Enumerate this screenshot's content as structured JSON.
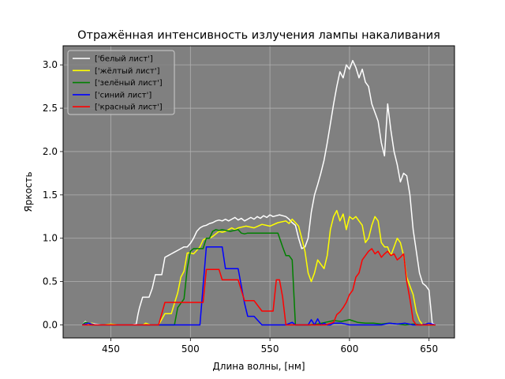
{
  "chart_data": {
    "type": "line",
    "title": "Отражённая интенсивность излучения лампы накаливания",
    "xlabel": "Длина волны, [нм]",
    "ylabel": "Яркость",
    "xlim": [
      420,
      666
    ],
    "ylim": [
      -0.15,
      3.22
    ],
    "xticks": [
      450,
      500,
      550,
      600,
      650
    ],
    "yticks": [
      0.0,
      0.5,
      1.0,
      1.5,
      2.0,
      2.5,
      3.0
    ],
    "xtick_labels": [
      "450",
      "500",
      "550",
      "600",
      "650"
    ],
    "ytick_labels": [
      "0.0",
      "0.5",
      "1.0",
      "1.5",
      "2.0",
      "2.5",
      "3.0"
    ],
    "grid": true,
    "legend_position": "top-left",
    "plot_background": "#808080",
    "series": [
      {
        "name": "['белый лист']",
        "color": "#ffffff",
        "x": [
          432,
          434,
          436,
          438,
          440,
          445,
          450,
          455,
          460,
          463,
          466,
          467,
          468,
          470,
          472,
          474,
          476,
          478,
          480,
          482,
          484,
          486,
          488,
          490,
          492,
          494,
          496,
          498,
          500,
          502,
          504,
          506,
          508,
          510,
          512,
          514,
          516,
          518,
          520,
          522,
          524,
          526,
          528,
          530,
          532,
          534,
          536,
          538,
          540,
          542,
          544,
          546,
          548,
          550,
          552,
          554,
          556,
          558,
          560,
          562,
          564,
          566,
          568,
          570,
          572,
          574,
          576,
          578,
          580,
          582,
          584,
          586,
          588,
          590,
          592,
          594,
          596,
          598,
          600,
          602,
          604,
          606,
          608,
          610,
          612,
          614,
          616,
          618,
          620,
          622,
          624,
          626,
          628,
          630,
          632,
          634,
          636,
          638,
          640,
          642,
          644,
          646,
          648,
          650,
          652,
          654
        ],
        "y": [
          0.0,
          0.04,
          0.0,
          0.02,
          0.01,
          0.0,
          0.0,
          0.0,
          0.0,
          0.0,
          0.01,
          0.12,
          0.2,
          0.32,
          0.32,
          0.32,
          0.42,
          0.58,
          0.58,
          0.58,
          0.78,
          0.8,
          0.82,
          0.84,
          0.86,
          0.88,
          0.9,
          0.9,
          0.94,
          1.0,
          1.08,
          1.12,
          1.14,
          1.15,
          1.17,
          1.18,
          1.2,
          1.21,
          1.2,
          1.22,
          1.2,
          1.22,
          1.24,
          1.21,
          1.23,
          1.2,
          1.22,
          1.24,
          1.22,
          1.25,
          1.23,
          1.26,
          1.24,
          1.27,
          1.25,
          1.26,
          1.27,
          1.26,
          1.25,
          1.22,
          1.18,
          1.15,
          1.0,
          0.88,
          0.9,
          1.0,
          1.3,
          1.5,
          1.62,
          1.75,
          1.9,
          2.1,
          2.32,
          2.55,
          2.75,
          2.92,
          2.85,
          3.0,
          2.95,
          3.05,
          2.97,
          2.85,
          2.95,
          2.8,
          2.75,
          2.55,
          2.45,
          2.35,
          2.1,
          1.95,
          2.55,
          2.25,
          2.0,
          1.85,
          1.65,
          1.75,
          1.72,
          1.5,
          1.1,
          0.85,
          0.6,
          0.48,
          0.45,
          0.4,
          0.02,
          0.0
        ]
      },
      {
        "name": "['жёлтый лист']",
        "color": "#ffff00",
        "x": [
          432,
          436,
          438,
          440,
          445,
          450,
          455,
          460,
          465,
          468,
          470,
          472,
          475,
          480,
          484,
          486,
          488,
          490,
          492,
          494,
          496,
          498,
          500,
          502,
          504,
          506,
          508,
          510,
          512,
          514,
          516,
          518,
          520,
          522,
          524,
          526,
          528,
          530,
          535,
          540,
          545,
          550,
          555,
          560,
          562,
          564,
          566,
          568,
          570,
          572,
          574,
          576,
          578,
          580,
          582,
          584,
          586,
          588,
          590,
          592,
          594,
          596,
          598,
          600,
          602,
          604,
          606,
          608,
          610,
          612,
          614,
          616,
          618,
          620,
          622,
          624,
          626,
          628,
          630,
          632,
          634,
          636,
          638,
          640,
          642,
          644,
          646,
          648,
          650,
          654
        ],
        "y": [
          0.0,
          0.01,
          0.02,
          0.0,
          0.0,
          0.01,
          0.0,
          0.0,
          0.0,
          0.0,
          0.0,
          0.02,
          0.0,
          0.0,
          0.13,
          0.13,
          0.13,
          0.25,
          0.37,
          0.55,
          0.62,
          0.83,
          0.83,
          0.82,
          0.86,
          0.9,
          0.98,
          1.0,
          1.0,
          1.02,
          1.05,
          1.08,
          1.07,
          1.08,
          1.1,
          1.12,
          1.1,
          1.12,
          1.14,
          1.12,
          1.16,
          1.14,
          1.18,
          1.2,
          1.17,
          1.22,
          1.18,
          1.14,
          1.0,
          0.85,
          0.6,
          0.5,
          0.6,
          0.75,
          0.7,
          0.65,
          0.8,
          1.1,
          1.25,
          1.32,
          1.2,
          1.28,
          1.1,
          1.25,
          1.22,
          1.25,
          1.2,
          1.15,
          0.95,
          1.0,
          1.15,
          1.25,
          1.2,
          0.95,
          0.9,
          0.9,
          0.8,
          0.9,
          1.0,
          0.95,
          0.8,
          0.55,
          0.45,
          0.35,
          0.15,
          0.05,
          0.0,
          0.02,
          0.0,
          0.0
        ]
      },
      {
        "name": "['зелёный лист']",
        "color": "#008000",
        "x": [
          432,
          434,
          436,
          438,
          440,
          445,
          450,
          455,
          460,
          465,
          470,
          475,
          480,
          485,
          490,
          492,
          494,
          496,
          498,
          500,
          502,
          504,
          506,
          508,
          510,
          512,
          514,
          516,
          518,
          520,
          525,
          530,
          532,
          534,
          536,
          540,
          545,
          550,
          555,
          558,
          560,
          562,
          564,
          566,
          568,
          570,
          575,
          580,
          585,
          590,
          595,
          600,
          605,
          610,
          615,
          620,
          625,
          630,
          635,
          640,
          645,
          650,
          654
        ],
        "y": [
          0.0,
          0.03,
          0.02,
          0.0,
          0.0,
          0.0,
          0.0,
          0.0,
          0.0,
          0.0,
          0.0,
          0.0,
          0.0,
          0.0,
          0.0,
          0.2,
          0.25,
          0.3,
          0.65,
          0.85,
          0.88,
          0.88,
          0.88,
          0.88,
          1.0,
          1.0,
          1.08,
          1.1,
          1.09,
          1.1,
          1.08,
          1.1,
          1.06,
          1.05,
          1.06,
          1.06,
          1.06,
          1.06,
          1.06,
          0.9,
          0.8,
          0.8,
          0.75,
          0.0,
          0.0,
          0.0,
          0.0,
          0.01,
          0.03,
          0.05,
          0.04,
          0.06,
          0.03,
          0.02,
          0.02,
          0.01,
          0.02,
          0.01,
          0.0,
          0.01,
          0.0,
          0.0,
          0.0
        ]
      },
      {
        "name": "['синий лист']",
        "color": "#0000ff",
        "x": [
          432,
          436,
          440,
          445,
          450,
          455,
          460,
          465,
          470,
          475,
          480,
          485,
          490,
          492,
          494,
          496,
          498,
          500,
          502,
          504,
          506,
          508,
          510,
          512,
          514,
          516,
          518,
          520,
          522,
          525,
          530,
          534,
          536,
          538,
          540,
          545,
          550,
          555,
          560,
          564,
          566,
          568,
          570,
          574,
          576,
          578,
          580,
          582,
          584,
          586,
          588,
          590,
          595,
          600,
          605,
          610,
          615,
          620,
          625,
          630,
          635,
          640,
          645,
          650,
          654
        ],
        "y": [
          0.0,
          0.02,
          0.0,
          0.0,
          0.0,
          0.0,
          0.0,
          0.0,
          0.0,
          0.0,
          0.0,
          0.0,
          0.0,
          0.0,
          0.0,
          0.0,
          0.0,
          0.0,
          0.0,
          0.0,
          0.0,
          0.45,
          0.9,
          0.9,
          0.9,
          0.9,
          0.9,
          0.9,
          0.65,
          0.65,
          0.65,
          0.25,
          0.1,
          0.1,
          0.1,
          0.0,
          0.0,
          0.0,
          0.0,
          0.03,
          0.0,
          0.0,
          0.0,
          0.0,
          0.06,
          0.0,
          0.07,
          0.0,
          0.02,
          0.0,
          0.0,
          0.02,
          0.02,
          0.0,
          0.0,
          0.0,
          0.0,
          0.0,
          0.02,
          0.01,
          0.02,
          0.0,
          0.0,
          0.02,
          0.0
        ]
      },
      {
        "name": "['красный лист']",
        "color": "#ff0000",
        "x": [
          432,
          436,
          440,
          445,
          450,
          455,
          460,
          465,
          470,
          475,
          480,
          484,
          486,
          488,
          490,
          495,
          500,
          505,
          508,
          510,
          514,
          518,
          520,
          522,
          525,
          530,
          534,
          536,
          540,
          545,
          550,
          552,
          554,
          556,
          558,
          560,
          562,
          564,
          566,
          568,
          570,
          575,
          580,
          585,
          590,
          592,
          594,
          596,
          598,
          600,
          602,
          604,
          606,
          608,
          610,
          612,
          614,
          616,
          618,
          620,
          622,
          624,
          626,
          628,
          630,
          632,
          634,
          636,
          638,
          640,
          642,
          645,
          650,
          654
        ],
        "y": [
          0.0,
          0.0,
          0.0,
          0.0,
          0.0,
          0.0,
          0.0,
          0.0,
          0.0,
          0.0,
          0.0,
          0.26,
          0.26,
          0.26,
          0.26,
          0.26,
          0.26,
          0.26,
          0.26,
          0.64,
          0.64,
          0.64,
          0.52,
          0.52,
          0.52,
          0.52,
          0.28,
          0.28,
          0.28,
          0.16,
          0.16,
          0.16,
          0.52,
          0.52,
          0.32,
          0.0,
          0.0,
          0.0,
          0.0,
          0.0,
          0.0,
          0.0,
          0.0,
          0.0,
          0.03,
          0.12,
          0.15,
          0.2,
          0.26,
          0.35,
          0.4,
          0.55,
          0.6,
          0.75,
          0.8,
          0.85,
          0.88,
          0.82,
          0.85,
          0.78,
          0.82,
          0.85,
          0.8,
          0.82,
          0.75,
          0.78,
          0.82,
          0.5,
          0.3,
          0.05,
          0.0,
          0.0,
          0.0,
          0.0
        ]
      }
    ]
  }
}
